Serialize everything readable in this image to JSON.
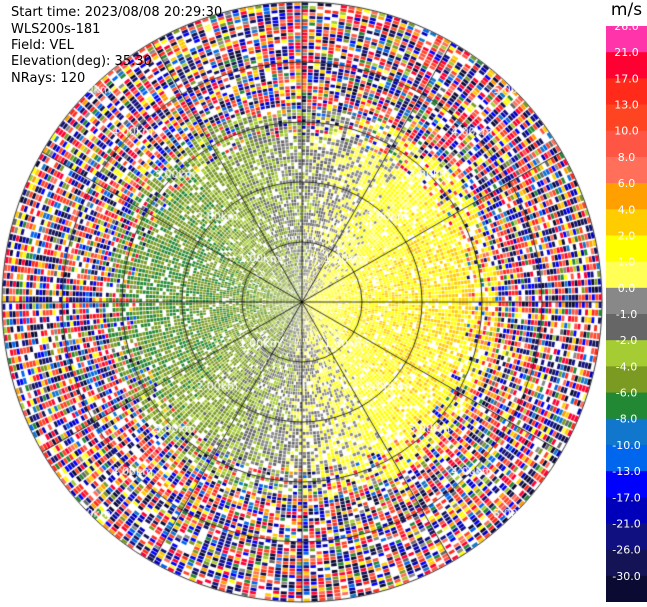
{
  "header": {
    "start_time": "Start time: 2023/08/08 20:29:30",
    "instrument": "WLS200s-181",
    "field": "Field: VEL",
    "elevation": "Elevation(deg): 35.30",
    "nrays": "NRays: 120"
  },
  "colorbar": {
    "unit": "m/s",
    "entries": [
      {
        "label": "26.0",
        "color": "#ff33aa"
      },
      {
        "label": "21.0",
        "color": "#ff0033"
      },
      {
        "label": "17.0",
        "color": "#ff2a1a"
      },
      {
        "label": "13.0",
        "color": "#ff4422"
      },
      {
        "label": "10.0",
        "color": "#ff5544"
      },
      {
        "label": "8.0",
        "color": "#ff6f5a"
      },
      {
        "label": "6.0",
        "color": "#ff9f00"
      },
      {
        "label": "4.0",
        "color": "#ffcc00"
      },
      {
        "label": "2.0",
        "color": "#ffff00"
      },
      {
        "label": "1.0",
        "color": "#ffff55"
      },
      {
        "label": "0.0",
        "color": "#888888"
      },
      {
        "label": "-1.0",
        "color": "#666666"
      },
      {
        "label": "-2.0",
        "color": "#a6cc33"
      },
      {
        "label": "-4.0",
        "color": "#7a9a22"
      },
      {
        "label": "-6.0",
        "color": "#228833"
      },
      {
        "label": "-8.0",
        "color": "#1177cc"
      },
      {
        "label": "-10.0",
        "color": "#0066ee"
      },
      {
        "label": "-13.0",
        "color": "#0000ff"
      },
      {
        "label": "-17.0",
        "color": "#0000bb"
      },
      {
        "label": "-21.0",
        "color": "#101080"
      },
      {
        "label": "-26.0",
        "color": "#131356"
      },
      {
        "label": "-30.0",
        "color": "#0a0a33"
      }
    ]
  },
  "chart_data": {
    "type": "heatmap",
    "projection": "polar PPI (range rings and azimuth spokes)",
    "field": "VEL",
    "range_rings_km": [
      1.0,
      2.0,
      3.0,
      4.0,
      5.0
    ],
    "ring_labels": [
      "1.00km",
      "2.00km",
      "3.00km",
      "4.00km",
      "5.00km"
    ],
    "max_range_km": 5.0,
    "nrays": 120,
    "spoke_angles_deg": [
      0,
      30,
      60,
      90,
      120,
      150,
      180,
      210,
      240,
      270,
      300,
      330
    ],
    "value_range": [
      -30.0,
      26.0
    ],
    "pattern": {
      "receding_sector_center_deg": 95,
      "receding_peak_ms": 4.0,
      "approaching_sector_center_deg": 275,
      "approaching_peak_ms": -4.0,
      "coherent_signal_range_km": 3.3,
      "beyond_range": "random noise spanning full colour scale"
    }
  }
}
